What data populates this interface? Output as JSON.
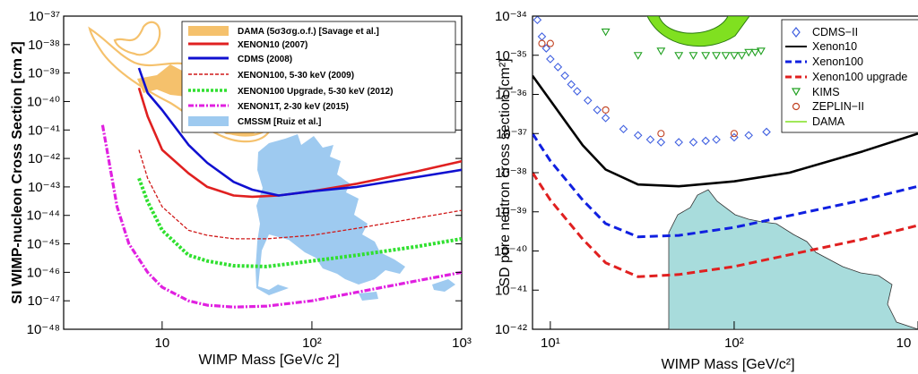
{
  "chart_data": [
    {
      "type": "line",
      "xlabel": "WIMP Mass [GeV/c 2]",
      "ylabel": "SI WIMP-nucleon Cross Section [cm 2]",
      "xscale": "log",
      "yscale": "log",
      "xlim": [
        2.2,
        1000
      ],
      "ylim": [
        1e-48,
        1e-37
      ],
      "x_ticks": [
        "10",
        "10²",
        "10³"
      ],
      "y_ticks": [
        "10⁻³⁷",
        "10⁻³⁸",
        "10⁻³⁹",
        "10⁻⁴⁰",
        "10⁻⁴¹",
        "10⁻⁴²",
        "10⁻⁴³",
        "10⁻⁴⁴",
        "10⁻⁴⁵",
        "10⁻⁴⁶",
        "10⁻⁴⁷",
        "10⁻⁴⁸"
      ],
      "legend_position": "top-right",
      "series": [
        {
          "name": "DAMA (5σ3σg.o.f.) [Savage et al.]",
          "kind": "region",
          "color": "#f5c16c",
          "x": [
            3,
            4,
            5,
            6,
            8,
            10,
            12,
            15,
            20,
            30,
            40
          ],
          "y": [
            3e-38,
            2e-39,
            5e-40,
            1e-39,
            4e-40,
            1e-40,
            2e-40,
            4e-41,
            1e-41,
            2e-41,
            1e-41
          ]
        },
        {
          "name": "XENON10 (2007)",
          "color": "#e02020",
          "style": "solid",
          "x": [
            7,
            8,
            10,
            15,
            20,
            30,
            40,
            60,
            100,
            200,
            500,
            1000
          ],
          "y": [
            3e-40,
            3e-41,
            2e-42,
            3e-43,
            1e-43,
            5e-44,
            4.5e-44,
            5e-44,
            7e-44,
            1.3e-43,
            3.5e-43,
            8e-43
          ]
        },
        {
          "name": "CDMS (2008)",
          "color": "#1010d0",
          "style": "solid",
          "x": [
            7,
            8,
            10,
            15,
            20,
            30,
            40,
            60,
            100,
            200,
            500,
            1000
          ],
          "y": [
            1.5e-39,
            2e-40,
            5e-41,
            3e-42,
            7e-43,
            1.5e-43,
            8e-44,
            5e-44,
            7e-44,
            1e-43,
            2.2e-43,
            4e-43
          ]
        },
        {
          "name": "XENON100, 5-30 keV (2009)",
          "color": "#d01818",
          "style": "dashed-thin",
          "x": [
            7,
            8,
            10,
            15,
            20,
            30,
            50,
            100,
            200,
            500,
            1000
          ],
          "y": [
            2e-42,
            2e-43,
            2e-44,
            3e-45,
            2e-45,
            1.5e-45,
            1.5e-45,
            2e-45,
            3.5e-45,
            8e-45,
            1.5e-44
          ]
        },
        {
          "name": "XENON100 Upgrade, 5-30 keV (2012)",
          "color": "#30e030",
          "style": "dotted-thick",
          "x": [
            7,
            8,
            10,
            15,
            20,
            30,
            50,
            100,
            200,
            500,
            1000
          ],
          "y": [
            2e-43,
            3e-44,
            3e-45,
            4e-46,
            2.5e-46,
            1.7e-46,
            1.6e-46,
            2.5e-46,
            4e-46,
            8e-46,
            1.5e-45
          ]
        },
        {
          "name": "XENON1T, 2-30 keV (2015)",
          "color": "#e020e0",
          "style": "dashdot-thick",
          "x": [
            4,
            5,
            6,
            8,
            10,
            15,
            20,
            30,
            50,
            100,
            200,
            500,
            1000
          ],
          "y": [
            1.5e-41,
            2e-44,
            1e-45,
            1e-46,
            3e-47,
            1e-47,
            7e-48,
            6e-48,
            6.5e-48,
            1e-47,
            2e-47,
            5e-47,
            1e-46
          ]
        },
        {
          "name": "CMSSM [Ruiz et al.]",
          "kind": "region",
          "color": "#9ecaf0",
          "x": [
            45,
            60,
            80,
            100,
            150,
            200,
            300
          ],
          "y": [
            3e-44,
            1e-43,
            1e-42,
            5e-44,
            1e-45,
            3e-46,
            5e-47
          ]
        }
      ]
    },
    {
      "type": "scatter+line",
      "xlabel": "WIMP Mass [GeV/c²]",
      "ylabel": "SD pure neutron cross section [cm²]",
      "xscale": "log",
      "yscale": "log",
      "xlim": [
        8,
        1000
      ],
      "ylim": [
        1e-42,
        1e-34
      ],
      "x_ticks": [
        "10¹",
        "10²",
        "10"
      ],
      "y_ticks": [
        "10⁻³⁴",
        "10⁻³⁵",
        "10⁻³⁶",
        "10⁻³⁷",
        "10⁻³⁸",
        "10⁻³⁹",
        "10⁻⁴⁰",
        "10⁻⁴¹",
        "10⁻⁴²"
      ],
      "legend_position": "top-right",
      "series": [
        {
          "name": "CDMS−II",
          "kind": "markers",
          "marker": "diamond",
          "color": "#4060e0",
          "x": [
            8.5,
            9,
            9.5,
            10,
            11,
            12,
            13,
            14,
            16,
            18,
            20,
            25,
            30,
            35,
            40,
            50,
            60,
            70,
            80,
            100,
            120,
            150
          ],
          "y": [
            8e-35,
            3e-35,
            1.5e-35,
            8e-36,
            5e-36,
            3e-36,
            1.8e-36,
            1.2e-36,
            7e-37,
            4e-37,
            2.5e-37,
            1.3e-37,
            9e-38,
            7e-38,
            6e-38,
            6e-38,
            6e-38,
            6.5e-38,
            7e-38,
            8e-38,
            9e-38,
            1.1e-37
          ]
        },
        {
          "name": "Xenon10",
          "color": "#000000",
          "style": "solid",
          "x": [
            8,
            10,
            15,
            20,
            30,
            50,
            100,
            200,
            500,
            1000
          ],
          "y": [
            3e-36,
            7e-37,
            5e-38,
            1.2e-38,
            5e-39,
            4.5e-39,
            6e-39,
            1e-38,
            3.5e-38,
            1e-37
          ]
        },
        {
          "name": "Xenon100",
          "color": "#1020e0",
          "style": "dashed",
          "x": [
            8,
            10,
            15,
            20,
            30,
            50,
            100,
            200,
            500,
            1000
          ],
          "y": [
            1e-37,
            2e-38,
            2e-39,
            5e-40,
            2.3e-40,
            2.5e-40,
            4e-40,
            8e-40,
            2e-39,
            4.5e-39
          ]
        },
        {
          "name": "Xenon100 upgrade",
          "color": "#e02020",
          "style": "dashed",
          "x": [
            8,
            10,
            15,
            20,
            30,
            50,
            100,
            200,
            500,
            1000
          ],
          "y": [
            1e-38,
            2e-39,
            2e-40,
            5e-41,
            2.2e-41,
            2.5e-41,
            4e-41,
            8e-41,
            2e-40,
            4.5e-40
          ]
        },
        {
          "name": "KIMS",
          "kind": "markers",
          "marker": "triangle-down",
          "color": "#20a020",
          "x": [
            20,
            30,
            40,
            50,
            60,
            70,
            80,
            90,
            100,
            110,
            120,
            130,
            140
          ],
          "y": [
            4e-35,
            1e-35,
            1.3e-35,
            1e-35,
            1e-35,
            1e-35,
            1e-35,
            1e-35,
            1e-35,
            1e-35,
            1.2e-35,
            1.2e-35,
            1.3e-35
          ]
        },
        {
          "name": "ZEPLIN−II",
          "kind": "markers",
          "marker": "circle",
          "color": "#c04020",
          "x": [
            9,
            10,
            20,
            40,
            100
          ],
          "y": [
            2e-35,
            2e-35,
            4e-37,
            1e-37,
            1e-37
          ]
        },
        {
          "name": "DAMA",
          "kind": "region",
          "color": "#80e020",
          "x": [
            30,
            50,
            80,
            100
          ],
          "y": [
            1e-34,
            3e-35,
            1e-34,
            1e-34
          ]
        },
        {
          "name": "",
          "kind": "region",
          "color": "#a8dcdc",
          "x": [
            40,
            60,
            100,
            200,
            300
          ],
          "y": [
            2e-39,
            1e-38,
            3e-39,
            1e-40,
            1e-41
          ]
        }
      ]
    }
  ]
}
